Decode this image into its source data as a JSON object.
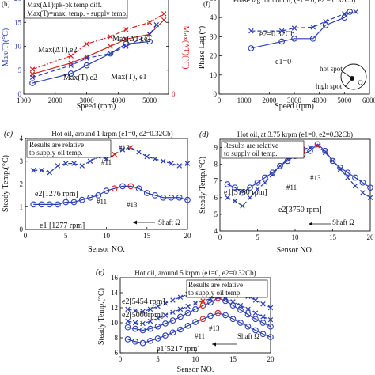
{
  "colors": {
    "blue": "#2b3fb5",
    "red": "#d62020",
    "black": "#111111"
  },
  "chart_data": [
    {
      "panel": "(b)",
      "type": "line",
      "title": "",
      "xlabel": "Speed (rpm)",
      "ylabel_left": "Max(T)(°C)",
      "ylabel_right": "Max(ΔT)(°C)",
      "xlim": [
        1000,
        5600
      ],
      "ylim_left": [
        0,
        20
      ],
      "ylim_right": [
        0,
        20
      ],
      "xticks": [
        "1000",
        "2000",
        "3000",
        "4000",
        "5000"
      ],
      "yticks_left": [
        "0",
        "5",
        "10",
        "15",
        "20"
      ],
      "yticks_right": [
        "0",
        "",
        "",
        "",
        ""
      ],
      "legend_text": [
        "Max(ΔT):pk-pk temp diff.",
        "Max(T)=max. temp. - supply temp."
      ],
      "annotations": [
        "Max(ΔT),e1",
        "Max(ΔT),e2",
        "Max(T),e2",
        "Max(T), e1"
      ],
      "series": [
        {
          "x": [
            1277,
            2500,
            3000,
            3750,
            4250,
            5000,
            5454
          ],
          "values": [
            5.2,
            8.0,
            10.5,
            12.0,
            13.5,
            15.0,
            16.8
          ],
          "style": "dashdot",
          "marker": "x",
          "color": "red"
        },
        {
          "x": [
            1277,
            2500,
            3000,
            3750,
            4250,
            5000,
            5454
          ],
          "values": [
            4.2,
            6.5,
            7.8,
            10.0,
            11.5,
            12.5,
            15.5
          ],
          "style": "solid",
          "marker": "x",
          "color": "red"
        },
        {
          "x": [
            1277,
            2500,
            3000,
            3750,
            4250,
            5000,
            5217
          ],
          "values": [
            3.5,
            6.0,
            7.5,
            8.5,
            10.0,
            12.5,
            14.5
          ],
          "style": "dash",
          "marker": "x",
          "color": "blue"
        },
        {
          "x": [
            1277,
            2500,
            3000,
            3750,
            4250,
            5000
          ],
          "values": [
            2.3,
            4.3,
            6.0,
            8.5,
            10.5,
            11.0
          ],
          "style": "solid",
          "marker": "o",
          "color": "blue"
        }
      ]
    },
    {
      "panel": "(f)",
      "type": "line",
      "title": "Phase lag for hot oil, (e1 = 0, e2 = 0.32Cb)",
      "xlabel": "Speed (rpm)",
      "ylabel": "Phase Lag (°)",
      "xlim": [
        0,
        6000
      ],
      "ylim": [
        0,
        50
      ],
      "xticks": [
        "0",
        "1000",
        "2000",
        "3000",
        "4000",
        "5000",
        "6000"
      ],
      "yticks": [
        "0",
        "10",
        "20",
        "30",
        "40",
        "50"
      ],
      "annotations": [
        "e2=0.32Cb",
        "e1=0",
        "hot spot",
        "high spot",
        "Ω"
      ],
      "series": [
        {
          "name": "e2=0.32Cb",
          "x": [
            1276,
            2500,
            3000,
            3750,
            4250,
            5000,
            5454
          ],
          "values": [
            33,
            33,
            34.5,
            35,
            38,
            42,
            43
          ],
          "style": "dash",
          "marker": "x",
          "color": "blue"
        },
        {
          "name": "e1=0",
          "x": [
            1277,
            2500,
            3000,
            3750,
            4250,
            5000,
            5217
          ],
          "values": [
            24,
            27.5,
            29,
            29,
            36,
            40,
            43
          ],
          "style": "solid",
          "marker": "o",
          "color": "blue"
        }
      ]
    },
    {
      "panel": "(c)",
      "type": "line",
      "title": "Hot oil, around 1 krpm (e1=0, e2=0.32Cb)",
      "xlabel": "Sensor NO.",
      "ylabel": "Steady Temp.(°C)",
      "xlim": [
        0,
        20
      ],
      "ylim": [
        0,
        4
      ],
      "xticks": [
        "0",
        "5",
        "10",
        "15",
        "20"
      ],
      "yticks": [
        "0",
        "1",
        "2",
        "3",
        "4"
      ],
      "box_text": [
        "Results are relative",
        "to supply oil temp."
      ],
      "annotations": [
        "#11",
        "#13",
        "#11",
        "#13",
        "Shaft Ω"
      ],
      "series": [
        {
          "name": "e2[1276 rpm]",
          "x": [
            1,
            2,
            3,
            4,
            5,
            6,
            7,
            8,
            9,
            10,
            11,
            12,
            13,
            14,
            15,
            16,
            17,
            18,
            19,
            20
          ],
          "values": [
            2.6,
            2.6,
            2.5,
            2.8,
            2.9,
            2.9,
            2.8,
            3.0,
            3.2,
            3.1,
            3.3,
            3.5,
            3.6,
            3.4,
            3.2,
            3.1,
            3.0,
            2.9,
            2.8,
            2.9
          ],
          "style": "dash",
          "marker": "x",
          "color": "blue"
        },
        {
          "name": "e1 [1277 rpm]",
          "x": [
            1,
            2,
            3,
            4,
            5,
            6,
            7,
            8,
            9,
            10,
            11,
            12,
            13,
            14,
            15,
            16,
            17,
            18,
            19,
            20
          ],
          "values": [
            1.1,
            1.1,
            1.1,
            1.1,
            1.2,
            1.2,
            1.3,
            1.4,
            1.5,
            1.7,
            1.8,
            1.9,
            1.9,
            1.8,
            1.6,
            1.5,
            1.4,
            1.4,
            1.4,
            1.3
          ],
          "style": "solid",
          "marker": "o",
          "color": "blue"
        }
      ]
    },
    {
      "panel": "(d)",
      "type": "line",
      "title": "Hot oil, at 3.75 krpm (e1=0, e2=0.32Cb)",
      "xlabel": "Sensor NO.",
      "ylabel": "Steady Temp.(°C)",
      "xlim": [
        0,
        20
      ],
      "ylim": [
        4,
        9.5
      ],
      "xticks": [
        "0",
        "5",
        "10",
        "15",
        "20"
      ],
      "yticks": [
        "4",
        "5",
        "6",
        "7",
        "8",
        "9"
      ],
      "box_text": [
        "Results are relative",
        "to supply oil temp."
      ],
      "annotations": [
        "#11",
        "#13",
        "Shaft Ω"
      ],
      "series": [
        {
          "name": "e1[3750 rpm]",
          "x": [
            1,
            2,
            3,
            4,
            5,
            6,
            7,
            8,
            9,
            10,
            11,
            12,
            13,
            14,
            15,
            16,
            17,
            18,
            19,
            20
          ],
          "values": [
            6.8,
            6.6,
            6.3,
            6.6,
            6.9,
            7.2,
            7.5,
            7.9,
            8.2,
            8.5,
            8.6,
            8.8,
            9.2,
            8.8,
            8.2,
            7.8,
            7.5,
            7.2,
            6.9,
            6.6
          ],
          "style": "solid",
          "marker": "o",
          "color": "blue"
        },
        {
          "name": "e2[3750 rpm]",
          "x": [
            1,
            2,
            3,
            4,
            5,
            6,
            7,
            8,
            9,
            10,
            11,
            12,
            13,
            14,
            15,
            16,
            17,
            18,
            19,
            20
          ],
          "values": [
            6.0,
            5.8,
            5.5,
            6.0,
            6.5,
            6.9,
            7.4,
            7.9,
            8.3,
            8.6,
            8.9,
            9.0,
            9.1,
            8.7,
            8.2,
            7.7,
            7.2,
            6.7,
            6.3,
            6.0
          ],
          "style": "dash",
          "marker": "x",
          "color": "blue"
        }
      ]
    },
    {
      "panel": "(e)",
      "type": "line",
      "title": "Hot oil, around 5 krpm (e1=0, e2=0.32Cb)",
      "xlabel": "Sensor NO.",
      "ylabel": "Steady Temp.(°C)",
      "xlim": [
        0,
        20
      ],
      "ylim": [
        6,
        16
      ],
      "xticks": [
        "0",
        "5",
        "10",
        "15",
        "20"
      ],
      "yticks": [
        "6",
        "8",
        "10",
        "12",
        "14",
        "16"
      ],
      "box_text": [
        "Results are relative",
        "to supply oil temp."
      ],
      "annotations": [
        "#13",
        "#11",
        "Shaft Ω"
      ],
      "series": [
        {
          "name": "e2[5454 rpm]",
          "x": [
            1,
            2,
            3,
            4,
            5,
            6,
            7,
            8,
            9,
            10,
            11,
            12,
            13,
            14,
            15,
            16,
            17,
            18,
            19,
            20
          ],
          "values": [
            11.8,
            11.6,
            11.5,
            11.8,
            12.2,
            12.6,
            13.0,
            13.4,
            13.8,
            14.2,
            14.6,
            15.0,
            15.5,
            15.0,
            14.5,
            14.0,
            13.5,
            13.0,
            12.5,
            12.0
          ],
          "style": "dash",
          "marker": "x",
          "color": "blue"
        },
        {
          "name": "e2[5000rpm]",
          "x": [
            1,
            2,
            3,
            4,
            5,
            6,
            7,
            8,
            9,
            10,
            11,
            12,
            13,
            14,
            15,
            16,
            17,
            18,
            19,
            20
          ],
          "values": [
            10.2,
            10.0,
            9.9,
            10.2,
            10.6,
            11.0,
            11.4,
            11.8,
            12.2,
            12.6,
            12.9,
            13.2,
            13.5,
            13.2,
            12.8,
            12.3,
            11.8,
            11.3,
            10.8,
            10.4
          ],
          "style": "dash",
          "marker": "x",
          "color": "blue"
        },
        {
          "name": "",
          "x": [
            1,
            2,
            3,
            4,
            5,
            6,
            7,
            8,
            9,
            10,
            11,
            12,
            13,
            14,
            15,
            16,
            17,
            18,
            19,
            20
          ],
          "values": [
            9.4,
            9.2,
            9.0,
            9.2,
            9.5,
            9.9,
            10.3,
            10.8,
            11.3,
            11.8,
            12.3,
            12.7,
            13.3,
            12.9,
            12.3,
            11.7,
            11.1,
            10.5,
            10.0,
            9.5
          ],
          "style": "solid",
          "marker": "o",
          "color": "blue"
        },
        {
          "name": "e1[5217 rpm]",
          "x": [
            1,
            2,
            3,
            4,
            5,
            6,
            7,
            8,
            9,
            10,
            11,
            12,
            13,
            14,
            15,
            16,
            17,
            18,
            19,
            20
          ],
          "values": [
            7.8,
            7.5,
            7.3,
            7.6,
            7.9,
            8.3,
            8.7,
            9.1,
            9.6,
            10.1,
            10.5,
            10.9,
            11.3,
            11.0,
            10.5,
            10.0,
            9.5,
            9.0,
            8.5,
            8.1
          ],
          "style": "solid",
          "marker": "o",
          "color": "blue"
        }
      ]
    }
  ]
}
